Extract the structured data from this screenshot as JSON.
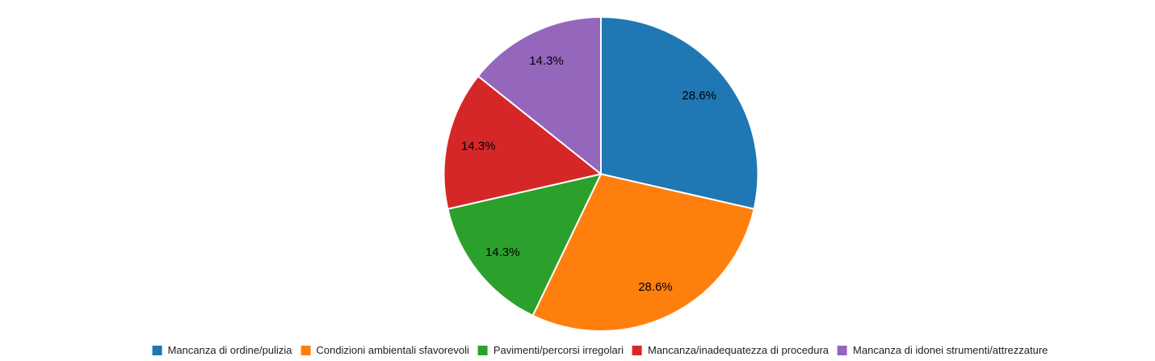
{
  "chart_data": {
    "type": "pie",
    "title": "",
    "categories": [
      "Mancanza di ordine/pulizia",
      "Condizioni ambientali sfavorevoli",
      "Pavimenti/percorsi irregolari",
      "Mancanza/inadequatezza di procedura",
      "Mancanza di idonei strumenti/attrezzature"
    ],
    "values": [
      28.6,
      28.6,
      14.3,
      14.3,
      14.3
    ],
    "labels": [
      "28.6%",
      "28.6%",
      "14.3%",
      "14.3%",
      "14.3%"
    ],
    "colors": [
      "#1f77b4",
      "#ff7f0e",
      "#2ca02c",
      "#d62728",
      "#9467bd"
    ],
    "start_angle": "12-oclock",
    "direction": "clockwise",
    "slice_border_color": "#ffffff",
    "label_color": "#000000",
    "legend_position": "bottom-center"
  }
}
